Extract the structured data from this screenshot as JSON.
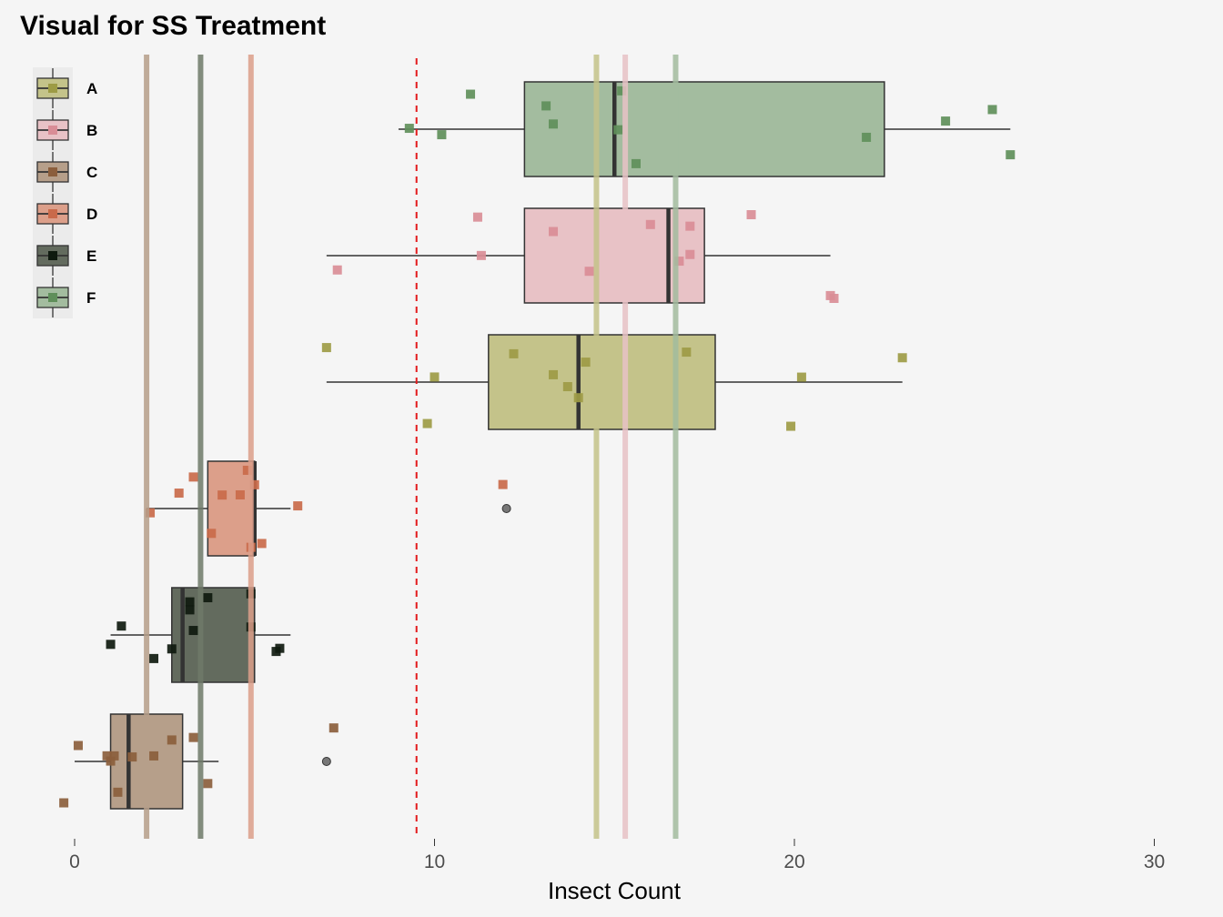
{
  "chart_data": {
    "type": "box",
    "title": "Visual for SS Treatment",
    "xlabel": "Insect Count",
    "ylabel": "",
    "xlim": [
      -2,
      30
    ],
    "x_ticks": [
      0,
      10,
      20,
      30
    ],
    "orientation": "horizontal",
    "legend_position": "top-left",
    "grid": false,
    "reference_line": {
      "x": 9.5,
      "style": "dashed",
      "color": "#e31a1c"
    },
    "groups": [
      {
        "name": "A",
        "fill": "#c4c38a",
        "point_color": "#9d9b45",
        "mean": 14.5,
        "box": {
          "whisker_low": 7.0,
          "q1": 11.5,
          "median": 14.0,
          "q3": 17.8,
          "whisker_high": 23.0
        },
        "outliers": [],
        "points": [
          7.0,
          10.0,
          9.8,
          12.2,
          13.3,
          13.7,
          14.0,
          14.2,
          17.0,
          19.9,
          20.2,
          23.0
        ]
      },
      {
        "name": "B",
        "fill": "#e8c2c6",
        "point_color": "#d98d96",
        "mean": 15.3,
        "box": {
          "whisker_low": 7.0,
          "q1": 12.5,
          "median": 16.5,
          "q3": 17.5,
          "whisker_high": 21.0
        },
        "outliers": [],
        "points": [
          7.3,
          11.2,
          11.3,
          13.3,
          14.3,
          16.0,
          16.8,
          17.1,
          17.1,
          18.8,
          21.0,
          21.1
        ]
      },
      {
        "name": "C",
        "fill": "#b69f8a",
        "point_color": "#8b5e3c",
        "mean": 2.0,
        "box": {
          "whisker_low": 0.0,
          "q1": 1.0,
          "median": 1.5,
          "q3": 3.0,
          "whisker_high": 4.0
        },
        "outliers": [
          7.0
        ],
        "points": [
          -0.3,
          0.1,
          0.9,
          1.0,
          1.1,
          1.2,
          1.6,
          2.2,
          2.7,
          3.3,
          3.7,
          7.2
        ]
      },
      {
        "name": "D",
        "fill": "#dc9f8a",
        "point_color": "#c96a4a",
        "mean": 4.9,
        "box": {
          "whisker_low": 2.0,
          "q1": 3.7,
          "median": 5.0,
          "q3": 5.0,
          "whisker_high": 6.0
        },
        "outliers": [
          12.0
        ],
        "points": [
          2.1,
          2.9,
          3.3,
          3.8,
          4.1,
          4.6,
          4.8,
          4.9,
          5.0,
          5.2,
          6.2,
          11.9
        ]
      },
      {
        "name": "E",
        "fill": "#636b5e",
        "point_color": "#0f1a0f",
        "mean": 3.5,
        "box": {
          "whisker_low": 1.0,
          "q1": 2.7,
          "median": 3.0,
          "q3": 5.0,
          "whisker_high": 6.0
        },
        "outliers": [],
        "points": [
          1.0,
          1.3,
          2.2,
          2.7,
          3.2,
          3.2,
          3.3,
          3.7,
          4.9,
          4.9,
          5.6,
          5.7
        ]
      },
      {
        "name": "F",
        "fill": "#a3bc9f",
        "point_color": "#5f8f5a",
        "mean": 16.7,
        "box": {
          "whisker_low": 9.0,
          "q1": 12.5,
          "median": 15.0,
          "q3": 22.5,
          "whisker_high": 26.0
        },
        "outliers": [],
        "points": [
          9.3,
          10.2,
          11.0,
          13.1,
          13.3,
          15.1,
          15.2,
          15.6,
          22.0,
          24.2,
          25.5,
          26.0
        ]
      }
    ]
  }
}
